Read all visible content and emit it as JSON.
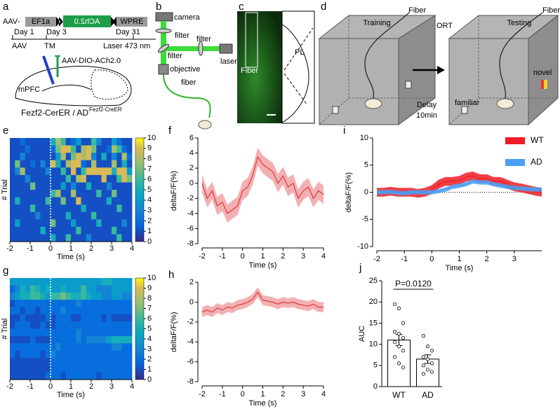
{
  "figure": {
    "a": {
      "label": "a",
      "construct": [
        "AAV-",
        "EF1a",
        "ACh2.0",
        "WPRE"
      ],
      "days": [
        "Day 1",
        "Day 3",
        "Day 31"
      ],
      "events": [
        "AAV",
        "TM",
        "Laser 473 nm"
      ],
      "virus": "AAV-DIO-ACh2.0",
      "region": "mPFC",
      "mice": "Fezf2-CerER / AD",
      "mice_sup": "Fezf2-CreER"
    },
    "b": {
      "label": "b",
      "parts": [
        "camera",
        "filter",
        "filter",
        "filter",
        "laser",
        "objective",
        "fiber"
      ]
    },
    "c": {
      "label": "c",
      "fiber": "Fiber",
      "region": "PL"
    },
    "d": {
      "label": "d",
      "training": "Training",
      "fiber": "Fiber",
      "test": "ORT",
      "testing": "Testing",
      "fiber2": "Fiber",
      "delay": "Delay",
      "delay_time": "10min",
      "familiar": "familiar",
      "novel": "novel"
    }
  },
  "chart_data": [
    {
      "type": "heatmap",
      "label": "e",
      "xlabel": "Time (s)",
      "ylabel": "# Trial",
      "xlim": [
        -2,
        4
      ],
      "xticks": [
        -2,
        -1,
        0,
        1,
        2,
        3,
        4
      ],
      "clim": [
        0,
        10
      ],
      "cticks": [
        0,
        1,
        2,
        3,
        4,
        5,
        6,
        7,
        8,
        9,
        10
      ],
      "values": [
        [
          1,
          1,
          2,
          1,
          1,
          1,
          1,
          1,
          5,
          8,
          6,
          1,
          2,
          4,
          1,
          1,
          6,
          3,
          1,
          1,
          4,
          2,
          1,
          1
        ],
        [
          1,
          1,
          1,
          2,
          1,
          1,
          1,
          1,
          2,
          7,
          9,
          9,
          6,
          1,
          8,
          9,
          7,
          1,
          1,
          2,
          8,
          6,
          2,
          1
        ],
        [
          1,
          1,
          3,
          1,
          1,
          1,
          1,
          1,
          1,
          4,
          8,
          1,
          7,
          9,
          8,
          9,
          3,
          1,
          5,
          1,
          3,
          1,
          8,
          2
        ],
        [
          1,
          7,
          1,
          1,
          2,
          1,
          3,
          1,
          9,
          5,
          1,
          8,
          9,
          9,
          2,
          1,
          8,
          1,
          1,
          1,
          8,
          1,
          5,
          1
        ],
        [
          1,
          3,
          8,
          1,
          1,
          1,
          1,
          3,
          1,
          1,
          6,
          1,
          9,
          1,
          6,
          9,
          9,
          9,
          9,
          9,
          5,
          9,
          9,
          4
        ],
        [
          1,
          1,
          1,
          3,
          1,
          1,
          1,
          1,
          1,
          1,
          1,
          6,
          1,
          8,
          9,
          1,
          1,
          1,
          9,
          1,
          1,
          6,
          9,
          7
        ],
        [
          1,
          1,
          1,
          1,
          7,
          1,
          1,
          1,
          1,
          1,
          4,
          1,
          3,
          1,
          1,
          5,
          1,
          1,
          1,
          3,
          1,
          1,
          1,
          1
        ],
        [
          1,
          1,
          1,
          1,
          1,
          1,
          1,
          1,
          6,
          8,
          1,
          1,
          8,
          1,
          1,
          1,
          1,
          6,
          1,
          1,
          7,
          1,
          1,
          1
        ],
        [
          1,
          5,
          1,
          1,
          1,
          1,
          1,
          6,
          1,
          1,
          7,
          1,
          1,
          9,
          1,
          1,
          1,
          1,
          1,
          5,
          1,
          1,
          1,
          1
        ],
        [
          1,
          1,
          1,
          1,
          6,
          1,
          1,
          1,
          1,
          1,
          1,
          1,
          1,
          1,
          5,
          1,
          1,
          1,
          1,
          1,
          1,
          6,
          1,
          1
        ],
        [
          1,
          1,
          1,
          1,
          1,
          3,
          1,
          1,
          1,
          1,
          1,
          5,
          1,
          1,
          1,
          1,
          6,
          1,
          1,
          1,
          1,
          1,
          1,
          1
        ],
        [
          1,
          4,
          1,
          1,
          1,
          1,
          1,
          1,
          7,
          1,
          1,
          1,
          4,
          1,
          1,
          1,
          1,
          5,
          1,
          1,
          1,
          1,
          3,
          1
        ],
        [
          1,
          1,
          1,
          1,
          1,
          1,
          5,
          1,
          1,
          1,
          1,
          1,
          1,
          6,
          1,
          1,
          1,
          1,
          1,
          1,
          6,
          1,
          1,
          1
        ],
        [
          1,
          1,
          1,
          1,
          1,
          1,
          1,
          1,
          5,
          1,
          1,
          6,
          1,
          1,
          1,
          3,
          1,
          1,
          1,
          1,
          1,
          6,
          1,
          1
        ]
      ]
    },
    {
      "type": "line",
      "label": "f",
      "xlabel": "Time (s)",
      "ylabel": "deltaF/F(%)",
      "xlim": [
        -2,
        4
      ],
      "xticks": [
        -2,
        -1,
        0,
        1,
        2,
        3,
        4
      ],
      "ylim": [
        -8,
        6
      ],
      "yticks": [
        -8,
        -6,
        -4,
        -2,
        0,
        2,
        4,
        6
      ],
      "color": "#e0393e",
      "x": [
        -2,
        -1.75,
        -1.5,
        -1.25,
        -1,
        -0.75,
        -0.5,
        -0.25,
        0,
        0.25,
        0.5,
        0.75,
        1,
        1.25,
        1.5,
        1.75,
        2,
        2.25,
        2.5,
        2.75,
        3,
        3.25,
        3.5,
        3.75,
        4
      ],
      "values": [
        0,
        -2,
        -1,
        -3,
        -2.5,
        -4,
        -3.5,
        -3,
        -1,
        -0.5,
        1,
        3.5,
        2.5,
        2,
        1.5,
        0,
        1,
        -0.5,
        0,
        -2,
        -1,
        -0.5,
        -2,
        -1,
        -1.5
      ],
      "err": [
        1.2,
        1.2,
        1.2,
        1.2,
        1.2,
        1.2,
        1.2,
        1.2,
        1.2,
        1.2,
        1.2,
        1.2,
        1.2,
        1.2,
        1.2,
        1.2,
        1.2,
        1.2,
        1.2,
        1.2,
        1.2,
        1.2,
        1.2,
        1.2,
        1.2
      ]
    },
    {
      "type": "heatmap",
      "label": "g",
      "xlabel": "Time (s)",
      "ylabel": "# Trial",
      "xlim": [
        -2,
        4
      ],
      "xticks": [
        -2,
        -1,
        0,
        1,
        2,
        3,
        4
      ],
      "clim": [
        0,
        10
      ],
      "cticks": [
        0,
        1,
        2,
        3,
        4,
        5,
        6,
        7,
        8,
        9,
        10
      ],
      "values": [
        [
          4,
          4,
          4,
          4,
          4,
          4,
          4,
          4,
          4,
          4,
          4,
          4,
          4,
          4,
          4,
          4,
          4,
          4,
          5,
          5,
          4,
          4,
          4,
          4
        ],
        [
          2,
          3,
          5,
          4,
          6,
          5,
          4,
          5,
          4,
          4,
          5,
          4,
          4,
          4,
          6,
          4,
          4,
          3,
          3,
          3,
          4,
          4,
          4,
          4
        ],
        [
          3,
          4,
          5,
          5,
          6,
          6,
          5,
          4,
          6,
          6,
          7,
          6,
          5,
          5,
          6,
          5,
          4,
          4,
          3,
          3,
          4,
          4,
          3,
          3
        ],
        [
          1,
          2,
          2,
          2,
          2,
          2,
          2,
          2,
          2,
          2,
          2,
          2,
          2,
          3,
          2,
          2,
          2,
          2,
          2,
          2,
          2,
          2,
          2,
          2
        ],
        [
          2,
          2,
          1,
          2,
          2,
          1,
          2,
          2,
          2,
          2,
          3,
          2,
          2,
          2,
          2,
          2,
          2,
          2,
          2,
          2,
          2,
          2,
          2,
          2
        ],
        [
          1,
          1,
          2,
          1,
          1,
          1,
          1,
          2,
          1,
          2,
          2,
          2,
          1,
          1,
          2,
          2,
          2,
          2,
          1,
          2,
          1,
          1,
          1,
          1
        ],
        [
          1,
          2,
          2,
          2,
          1,
          1,
          2,
          1,
          1,
          2,
          2,
          2,
          2,
          2,
          2,
          2,
          2,
          2,
          2,
          2,
          2,
          2,
          2,
          2
        ],
        [
          2,
          2,
          2,
          2,
          2,
          2,
          2,
          2,
          2,
          2,
          2,
          2,
          2,
          3,
          2,
          2,
          2,
          2,
          2,
          2,
          2,
          2,
          2,
          2
        ],
        [
          1,
          1,
          1,
          1,
          2,
          1,
          1,
          1,
          2,
          2,
          2,
          2,
          2,
          3,
          2,
          3,
          3,
          3,
          3,
          4,
          5,
          5,
          5,
          5
        ],
        [
          2,
          2,
          2,
          2,
          2,
          2,
          2,
          2,
          2,
          3,
          2,
          2,
          2,
          2,
          2,
          2,
          2,
          2,
          2,
          2,
          3,
          3,
          2,
          2
        ],
        [
          2,
          1,
          2,
          2,
          2,
          2,
          1,
          2,
          3,
          2,
          2,
          2,
          2,
          2,
          2,
          2,
          2,
          2,
          2,
          2,
          2,
          2,
          2,
          2
        ],
        [
          1,
          1,
          1,
          1,
          1,
          1,
          1,
          1,
          2,
          2,
          2,
          2,
          2,
          2,
          2,
          2,
          2,
          2,
          2,
          2,
          2,
          2,
          2,
          2
        ],
        [
          1,
          1,
          1,
          1,
          1,
          1,
          1,
          1,
          2,
          2,
          2,
          2,
          2,
          2,
          2,
          2,
          2,
          2,
          2,
          2,
          2,
          2,
          2,
          2
        ],
        [
          1,
          1,
          1,
          1,
          1,
          1,
          1,
          2,
          2,
          2,
          1,
          2,
          2,
          2,
          2,
          2,
          2,
          1,
          2,
          2,
          2,
          2,
          2,
          2
        ]
      ]
    },
    {
      "type": "line",
      "label": "h",
      "xlabel": "Time (s)",
      "ylabel": "deltaF/F(%)",
      "xlim": [
        -2,
        4
      ],
      "xticks": [
        -2,
        -1,
        0,
        1,
        2,
        3,
        4
      ],
      "ylim": [
        -8,
        2
      ],
      "yticks": [
        -8,
        -6,
        -4,
        -2,
        0,
        2
      ],
      "color": "#e0393e",
      "x": [
        -2,
        -1.75,
        -1.5,
        -1.25,
        -1,
        -0.75,
        -0.5,
        -0.25,
        0,
        0.25,
        0.5,
        0.75,
        1,
        1.25,
        1.5,
        1.75,
        2,
        2.25,
        2.5,
        2.75,
        3,
        3.25,
        3.5,
        3.75,
        4
      ],
      "values": [
        -1,
        -0.8,
        -1,
        -0.6,
        -0.8,
        -0.5,
        -0.6,
        -0.3,
        -0.2,
        0,
        0.3,
        1,
        0.2,
        0.1,
        0,
        -0.2,
        0,
        -0.1,
        0,
        -0.2,
        -0.3,
        -0.4,
        -0.2,
        -0.5,
        -0.5
      ],
      "err": [
        0.5,
        0.5,
        0.5,
        0.5,
        0.5,
        0.5,
        0.5,
        0.5,
        0.5,
        0.5,
        0.5,
        0.5,
        0.5,
        0.5,
        0.5,
        0.5,
        0.5,
        0.5,
        0.5,
        0.5,
        0.5,
        0.5,
        0.5,
        0.5,
        0.5
      ]
    },
    {
      "type": "line",
      "label": "i",
      "xlabel": "Time (s)",
      "ylabel": "deltaF/F(%)",
      "xlim": [
        -2,
        4
      ],
      "xticks": [
        -2,
        -1,
        0,
        1,
        2,
        3
      ],
      "ylim": [
        -10,
        10
      ],
      "yticks": [
        -10,
        -5,
        0,
        5,
        10
      ],
      "zero_line": true,
      "legend": "upper right",
      "x": [
        -2,
        -1.75,
        -1.5,
        -1.25,
        -1,
        -0.75,
        -0.5,
        -0.25,
        0,
        0.25,
        0.5,
        0.75,
        1,
        1.25,
        1.5,
        1.75,
        2,
        2.25,
        2.5,
        2.75,
        3,
        3.25,
        3.5,
        3.75,
        4
      ],
      "series": [
        {
          "name": "WT",
          "color": "#ee1c25",
          "values": [
            0,
            0,
            0.2,
            0,
            0,
            0,
            -0.2,
            0,
            0.5,
            1.5,
            2,
            2,
            2.2,
            2.8,
            3,
            2.5,
            2.5,
            2,
            2,
            1.5,
            1,
            0.8,
            0.5,
            0.2,
            0
          ],
          "err": [
            0.8,
            0.8,
            0.8,
            0.8,
            0.8,
            0.8,
            0.8,
            0.8,
            0.8,
            0.8,
            0.8,
            0.8,
            0.8,
            0.8,
            0.8,
            0.8,
            0.8,
            0.8,
            0.8,
            0.8,
            0.8,
            0.8,
            0.8,
            0.8,
            0.8
          ]
        },
        {
          "name": "AD",
          "color": "#4a9ff5",
          "values": [
            0,
            0,
            0.1,
            -0.1,
            -0.2,
            0,
            0,
            0,
            0,
            0.2,
            0.5,
            1,
            1.2,
            1.5,
            2,
            1.8,
            1.8,
            1.5,
            1.2,
            1,
            0.8,
            0.7,
            0.6,
            0.5,
            0.5
          ],
          "err": [
            0.4,
            0.4,
            0.4,
            0.4,
            0.4,
            0.4,
            0.4,
            0.4,
            0.4,
            0.4,
            0.4,
            0.4,
            0.4,
            0.4,
            0.4,
            0.4,
            0.4,
            0.4,
            0.4,
            0.4,
            0.4,
            0.4,
            0.4,
            0.4,
            0.4
          ]
        }
      ]
    },
    {
      "type": "bar",
      "label": "j",
      "ylabel": "AUC",
      "categories": [
        "WT",
        "AD"
      ],
      "values": [
        11,
        6.5
      ],
      "errors": [
        1.3,
        1.0
      ],
      "color": "#ffffff",
      "points": [
        [
          19.5,
          18.5,
          15,
          13,
          12.5,
          11.5,
          10.5,
          9.5,
          8.5,
          7,
          5.5,
          4.5
        ],
        [
          12,
          9.5,
          8.5,
          7,
          6.5,
          5.5,
          5,
          4,
          3.5,
          3
        ]
      ],
      "annotation": "P=0.0120",
      "ylim": [
        0,
        25
      ],
      "yticks": [
        0,
        5,
        10,
        15,
        20,
        25
      ]
    }
  ]
}
